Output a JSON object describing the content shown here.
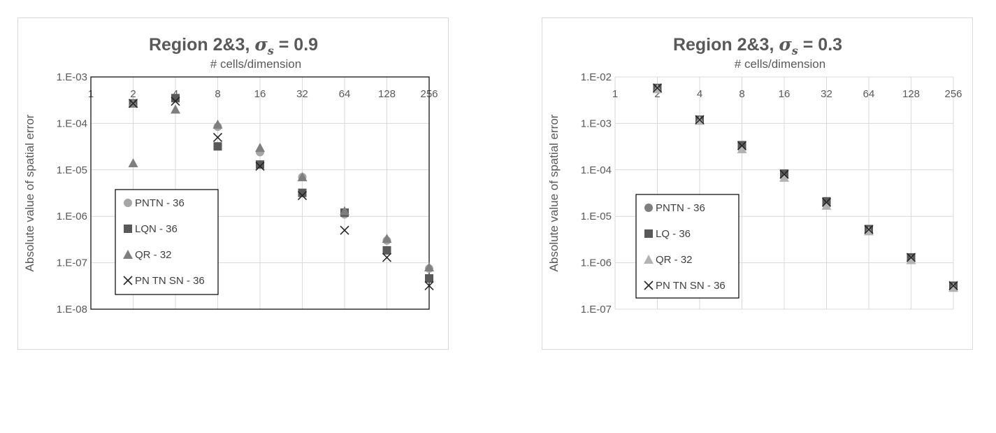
{
  "chart_data": [
    {
      "type": "scatter",
      "title": {
        "prefix": "Region 2&3, ",
        "symbol": "σ",
        "subscript": "s",
        "suffix": " = 0.9"
      },
      "xlabel": "# cells/dimension",
      "ylabel": "Absolute value of spatial error",
      "x_scale": "log2",
      "y_scale": "log10",
      "x_ticks": [
        "1",
        "2",
        "4",
        "8",
        "16",
        "32",
        "64",
        "128",
        "256"
      ],
      "y_ticks": [
        "1.E-03",
        "1.E-04",
        "1.E-05",
        "1.E-06",
        "1.E-07",
        "1.E-08"
      ],
      "xlim": [
        1,
        256
      ],
      "ylim": [
        1e-08,
        0.001
      ],
      "grid": true,
      "plot_border": true,
      "legend_placement": "lower-left",
      "series": [
        {
          "name": "PNTN - 36",
          "marker": "circle",
          "color": "#a6a6a6",
          "x": [
            2,
            4,
            8,
            16,
            32,
            64,
            128,
            256
          ],
          "y": [
            0.00027,
            0.00035,
            8.5e-05,
            2.4e-05,
            7e-06,
            1.1e-06,
            3e-07,
            7.5e-08
          ]
        },
        {
          "name": "LQN - 36",
          "marker": "square",
          "color": "#595959",
          "x": [
            2,
            4,
            8,
            16,
            32,
            64,
            128,
            256
          ],
          "y": [
            0.00027,
            0.00035,
            3.2e-05,
            1.3e-05,
            3.2e-06,
            1.2e-06,
            1.85e-07,
            4.6e-08
          ]
        },
        {
          "name": "QR - 32",
          "marker": "triangle",
          "color": "#7f7f7f",
          "x": [
            2,
            2,
            4,
            8,
            16,
            32,
            64,
            128,
            256
          ],
          "y": [
            1.4e-05,
            0.00027,
            0.0002,
            9.5e-05,
            3e-05,
            7e-06,
            1.3e-06,
            3.3e-07,
            8e-08
          ]
        },
        {
          "name": "PN TN SN - 36",
          "marker": "x",
          "color": "#262626",
          "x": [
            2,
            4,
            8,
            16,
            32,
            64,
            128,
            256
          ],
          "y": [
            0.00027,
            0.0003,
            5e-05,
            1.2e-05,
            2.8e-06,
            5e-07,
            1.3e-07,
            3.2e-08
          ]
        }
      ]
    },
    {
      "type": "scatter",
      "title": {
        "prefix": "Region 2&3, ",
        "symbol": "σ",
        "subscript": "s",
        "suffix": " = 0.3"
      },
      "xlabel": "# cells/dimension",
      "ylabel": "Absolute value of spatial error",
      "x_scale": "log2",
      "y_scale": "log10",
      "x_ticks": [
        "1",
        "2",
        "4",
        "8",
        "16",
        "32",
        "64",
        "128",
        "256"
      ],
      "y_ticks": [
        "1.E-02",
        "1.E-03",
        "1.E-04",
        "1.E-05",
        "1.E-06",
        "1.E-07"
      ],
      "xlim": [
        1,
        256
      ],
      "ylim": [
        1e-07,
        0.01
      ],
      "grid": true,
      "plot_border": false,
      "legend_placement": "lower-left",
      "series": [
        {
          "name": "PNTN - 36",
          "marker": "circle",
          "color": "#7f7f7f",
          "x": [
            2,
            4,
            8,
            16,
            32,
            64,
            128,
            256
          ],
          "y": [
            0.0055,
            0.0012,
            0.0003,
            7.5e-05,
            1.8e-05,
            5e-06,
            1.2e-06,
            3e-07
          ]
        },
        {
          "name": "LQ - 36",
          "marker": "square",
          "color": "#595959",
          "x": [
            2,
            4,
            8,
            16,
            32,
            64,
            128,
            256
          ],
          "y": [
            0.0058,
            0.0012,
            0.00034,
            8.3e-05,
            2.1e-05,
            5.3e-06,
            1.3e-06,
            3.2e-07
          ]
        },
        {
          "name": "QR - 32",
          "marker": "triangle",
          "color": "#b3b3b3",
          "x": [
            2,
            4,
            8,
            16,
            32,
            64,
            128,
            256
          ],
          "y": [
            0.0055,
            0.00115,
            0.00028,
            6.8e-05,
            1.7e-05,
            4.8e-06,
            1.15e-06,
            2.9e-07
          ]
        },
        {
          "name": "PN TN SN - 36",
          "marker": "x",
          "color": "#262626",
          "x": [
            2,
            4,
            8,
            16,
            32,
            64,
            128,
            256
          ],
          "y": [
            0.0058,
            0.0012,
            0.00033,
            8e-05,
            2e-05,
            5.2e-06,
            1.3e-06,
            3.2e-07
          ]
        }
      ]
    }
  ]
}
